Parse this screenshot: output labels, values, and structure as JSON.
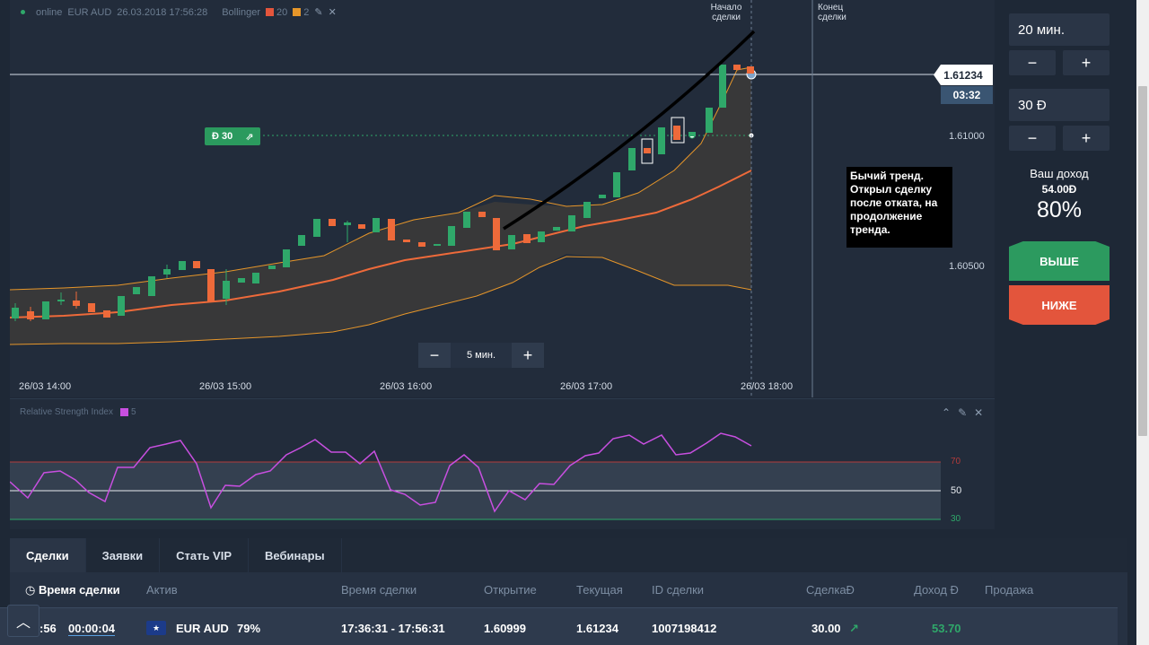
{
  "chart": {
    "header": {
      "status": "online",
      "asset": "EUR AUD",
      "timestamp": "26.03.2018 17:56:28",
      "indicator": "Bollinger",
      "param1": "20",
      "param2": "2",
      "color1": "#e3553c",
      "color2": "#e6962a"
    },
    "current_price": "1.61234",
    "timer": "03:32",
    "price_levels": [
      "1.61000",
      "1.60500"
    ],
    "deal_start_label": "Начало сделки",
    "deal_end_label": "Конец сделки",
    "deal_tag": {
      "amount": "Đ 30",
      "direction_icon": "arrow-up-right-icon"
    },
    "annotation": "Бычий тренд. Открыл сделку после отката, на продолжение тренда.",
    "zoom": {
      "minus": "−",
      "value": "5 мин.",
      "plus": "+"
    },
    "time_labels": [
      "26/03 14:00",
      "26/03 15:00",
      "26/03 16:00",
      "26/03 17:00",
      "26/03 18:00"
    ]
  },
  "rsi": {
    "title": "Relative Strength Index",
    "period": "5",
    "levels": [
      "70",
      "50",
      "30"
    ],
    "line_color": "#c84fe0"
  },
  "trade_panel": {
    "duration": "20 мин.",
    "amount": "30 Đ",
    "minus": "−",
    "plus": "+",
    "profit_title": "Ваш доход",
    "profit_amount": "54.00Đ",
    "profit_pct": "80%",
    "up_label": "ВЫШЕ",
    "down_label": "НИЖЕ",
    "colors": {
      "up": "#2c9a5f",
      "down": "#e3553c"
    }
  },
  "deals": {
    "tabs": [
      "Сделки",
      "Заявки",
      "Стать VIP",
      "Вебинары"
    ],
    "columns": [
      "Время сделки",
      "Актив",
      "Время сделки",
      "Открытие",
      "Текущая",
      "ID сделки",
      "СделкаĐ",
      "Доход Đ",
      "Продажа"
    ],
    "row": {
      "elapsed_partial": ":56",
      "timer": "00:00:04",
      "asset": "EUR AUD",
      "payout": "79%",
      "period": "17:36:31 - 17:56:31",
      "open": "1.60999",
      "current": "1.61234",
      "id": "1007198412",
      "amount": "30.00",
      "income": "53.70"
    }
  }
}
